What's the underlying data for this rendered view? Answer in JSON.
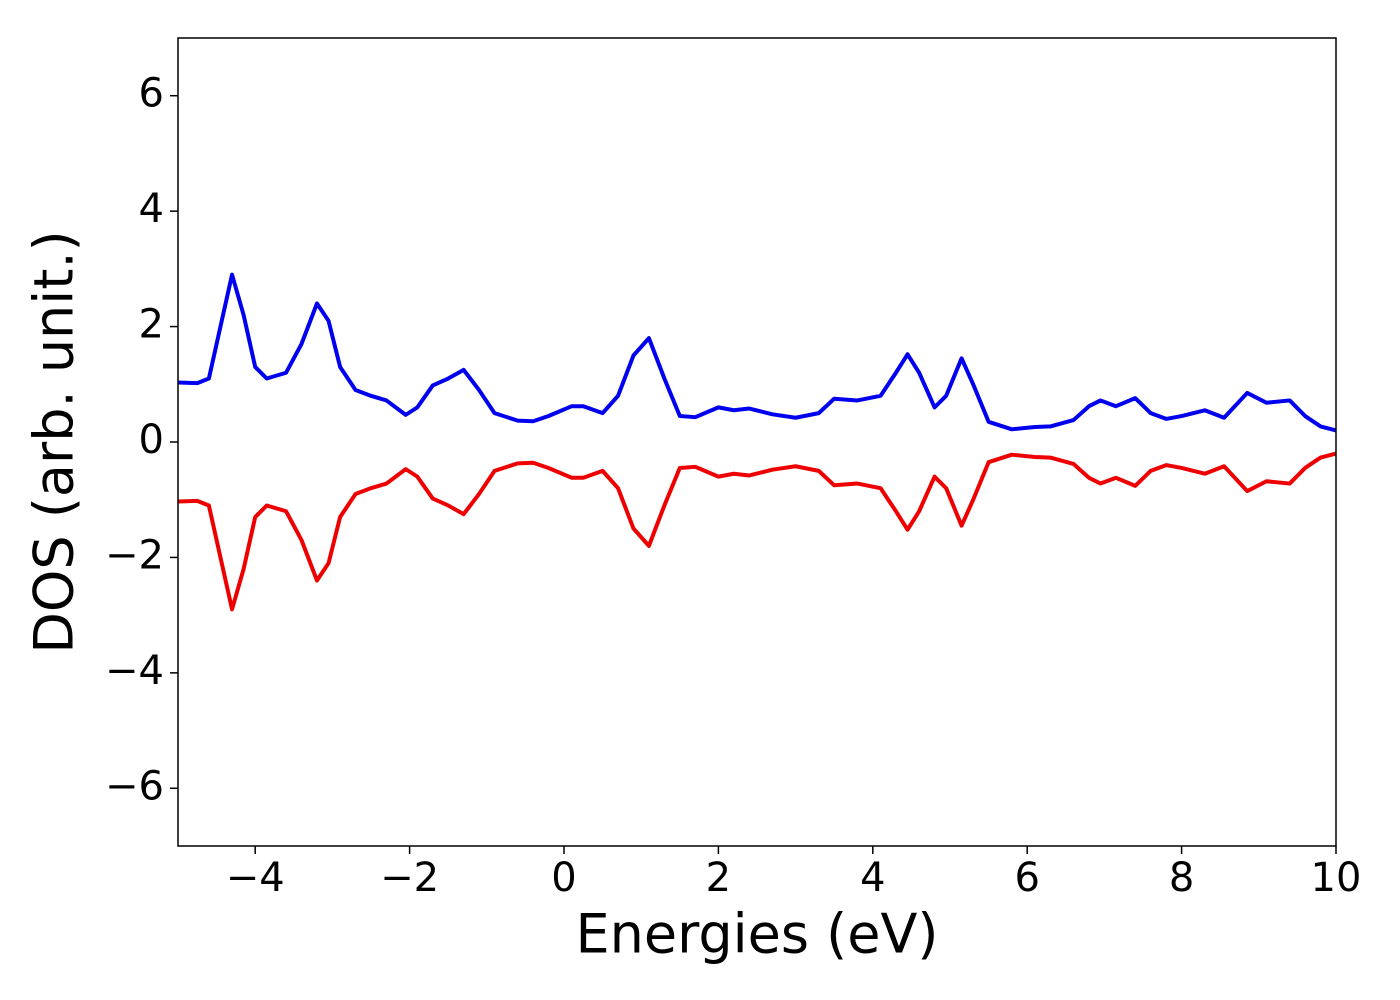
{
  "chart_data": {
    "type": "line",
    "xlabel": "Energies (eV)",
    "ylabel": "DOS (arb. unit.)",
    "x": [
      -5,
      -4.75,
      -4.6,
      -4.45,
      -4.3,
      -4.15,
      -4.0,
      -3.85,
      -3.6,
      -3.4,
      -3.2,
      -3.05,
      -2.9,
      -2.7,
      -2.5,
      -2.3,
      -2.05,
      -1.9,
      -1.7,
      -1.5,
      -1.3,
      -1.1,
      -0.9,
      -0.6,
      -0.4,
      -0.2,
      0.1,
      0.25,
      0.5,
      0.7,
      0.9,
      1.1,
      1.3,
      1.5,
      1.7,
      2.0,
      2.2,
      2.4,
      2.7,
      3.0,
      3.3,
      3.5,
      3.8,
      4.1,
      4.3,
      4.45,
      4.6,
      4.8,
      4.95,
      5.15,
      5.3,
      5.5,
      5.8,
      6.1,
      6.3,
      6.6,
      6.8,
      6.95,
      7.15,
      7.4,
      7.6,
      7.8,
      8.0,
      8.3,
      8.55,
      8.85,
      9.1,
      9.4,
      9.6,
      9.8,
      10
    ],
    "series": [
      {
        "color": "#0000ee",
        "values": [
          1.03,
          1.02,
          1.1,
          2.0,
          2.9,
          2.2,
          1.3,
          1.1,
          1.2,
          1.7,
          2.4,
          2.1,
          1.3,
          0.9,
          0.8,
          0.72,
          0.47,
          0.6,
          0.98,
          1.1,
          1.25,
          0.9,
          0.5,
          0.37,
          0.36,
          0.45,
          0.62,
          0.62,
          0.5,
          0.8,
          1.5,
          1.8,
          1.1,
          0.45,
          0.43,
          0.6,
          0.55,
          0.58,
          0.48,
          0.42,
          0.5,
          0.75,
          0.72,
          0.8,
          1.2,
          1.52,
          1.2,
          0.6,
          0.8,
          1.45,
          1.0,
          0.35,
          0.22,
          0.26,
          0.27,
          0.38,
          0.62,
          0.72,
          0.62,
          0.76,
          0.5,
          0.4,
          0.45,
          0.55,
          0.42,
          0.85,
          0.68,
          0.72,
          0.45,
          0.27,
          0.2
        ]
      },
      {
        "color": "#ee0000",
        "values": [
          -1.03,
          -1.02,
          -1.1,
          -2.0,
          -2.9,
          -2.2,
          -1.3,
          -1.1,
          -1.2,
          -1.7,
          -2.4,
          -2.1,
          -1.3,
          -0.9,
          -0.8,
          -0.72,
          -0.47,
          -0.6,
          -0.98,
          -1.1,
          -1.25,
          -0.9,
          -0.5,
          -0.37,
          -0.36,
          -0.45,
          -0.62,
          -0.62,
          -0.5,
          -0.8,
          -1.5,
          -1.8,
          -1.1,
          -0.45,
          -0.43,
          -0.6,
          -0.55,
          -0.58,
          -0.48,
          -0.42,
          -0.5,
          -0.75,
          -0.72,
          -0.8,
          -1.2,
          -1.52,
          -1.2,
          -0.6,
          -0.8,
          -1.45,
          -1.0,
          -0.35,
          -0.22,
          -0.26,
          -0.27,
          -0.38,
          -0.62,
          -0.72,
          -0.62,
          -0.76,
          -0.5,
          -0.4,
          -0.45,
          -0.55,
          -0.42,
          -0.85,
          -0.68,
          -0.72,
          -0.45,
          -0.27,
          -0.2
        ]
      }
    ],
    "xlim": [
      -5,
      10
    ],
    "xticks": [
      {
        "value": -4,
        "label": "−4"
      },
      {
        "value": -2,
        "label": "−2"
      },
      0,
      2,
      4,
      6,
      8,
      10
    ],
    "ylim": [
      -7,
      7
    ],
    "yticks": [
      {
        "value": -6,
        "label": "−6"
      },
      {
        "value": -4,
        "label": "−4"
      },
      {
        "value": -2,
        "label": "−2"
      },
      0,
      2,
      4,
      6
    ]
  }
}
